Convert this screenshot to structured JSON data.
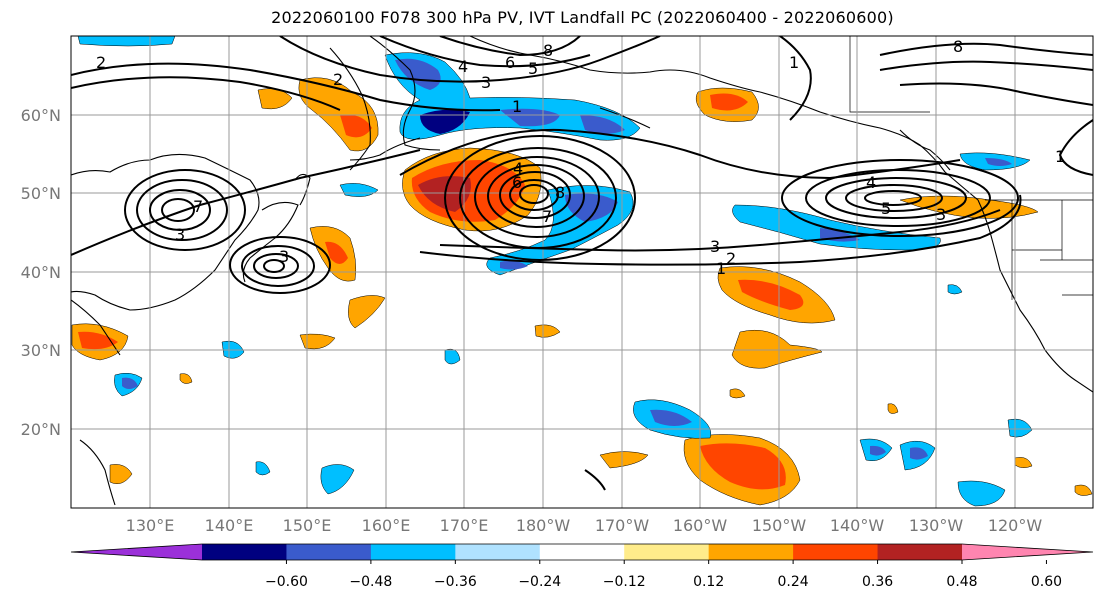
{
  "title": "2022060100 F078 300 hPa PV, IVT Landfall PC (2022060400 - 2022060600)",
  "lat_labels": [
    "60°N",
    "50°N",
    "40°N",
    "30°N",
    "20°N"
  ],
  "lon_labels": [
    "130°E",
    "140°E",
    "150°E",
    "160°E",
    "170°E",
    "180°W",
    "170°W",
    "160°W",
    "150°W",
    "140°W",
    "130°W",
    "120°W"
  ],
  "colorbar": {
    "colors": [
      "#9b30d9",
      "#000080",
      "#3a5bcc",
      "#00bfff",
      "#b0e2ff",
      "#ffffff",
      "#ffec8b",
      "#ffa500",
      "#ff4500",
      "#b22222",
      "#ff85b0"
    ],
    "tick_labels": [
      "−0.60",
      "−0.48",
      "−0.36",
      "−0.24",
      "−0.12",
      "0.12",
      "0.24",
      "0.36",
      "0.48",
      "0.60"
    ]
  },
  "contour_labels": [
    "2",
    "2",
    "3",
    "3",
    "3",
    "4",
    "4",
    "4",
    "5",
    "5",
    "6",
    "6",
    "7",
    "7",
    "8",
    "8",
    "8",
    "1",
    "1",
    "1",
    "1",
    "2",
    "3",
    "3"
  ]
}
